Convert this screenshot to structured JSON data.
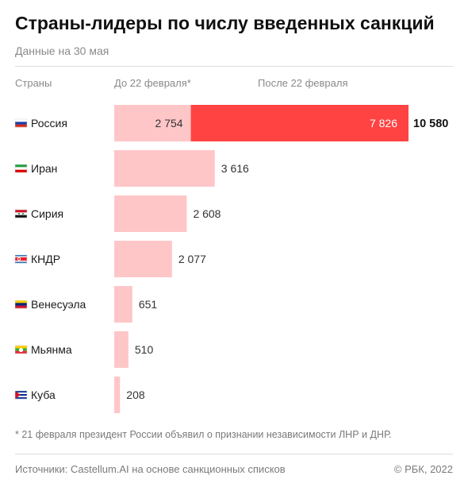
{
  "header": {
    "title": "Страны-лидеры по числу введенных санкций",
    "subtitle": "Данные на 30 мая"
  },
  "columns": {
    "country": "Страны",
    "before": "До 22 февраля*",
    "after": "После 22 февраля"
  },
  "colors": {
    "before": "#ffc6c8",
    "after": "#ff4343"
  },
  "chart_data": {
    "type": "bar",
    "orientation": "horizontal",
    "stacked": true,
    "categories": [
      "Россия",
      "Иран",
      "Сирия",
      "КНДР",
      "Венесуэла",
      "Мьянма",
      "Куба"
    ],
    "flags": [
      "flag-russia-icon",
      "flag-iran-icon",
      "flag-syria-icon",
      "flag-north-korea-icon",
      "flag-venezuela-icon",
      "flag-myanmar-icon",
      "flag-cuba-icon"
    ],
    "series": [
      {
        "name": "До 22 февраля*",
        "values": [
          2754,
          3616,
          2608,
          2077,
          651,
          510,
          208
        ]
      },
      {
        "name": "После 22 февраля",
        "values": [
          7826,
          0,
          0,
          0,
          0,
          0,
          0
        ]
      }
    ],
    "totals": [
      10580,
      null,
      null,
      null,
      null,
      null,
      null
    ],
    "labels": {
      "before": [
        "2 754",
        "3 616",
        "2 608",
        "2 077",
        "651",
        "510",
        "208"
      ],
      "after": [
        "7 826",
        "",
        "",
        "",
        "",
        "",
        ""
      ],
      "total": [
        "10 580",
        "",
        "",
        "",
        "",
        "",
        ""
      ]
    },
    "xlim": [
      0,
      10580
    ]
  },
  "footer": {
    "footnote": "* 21 февраля президент России объявил о признании независимости ЛНР и ДНР.",
    "source": "Источники: Castellum.AI на основе санкционных списков",
    "copyright": "© РБК, 2022"
  }
}
